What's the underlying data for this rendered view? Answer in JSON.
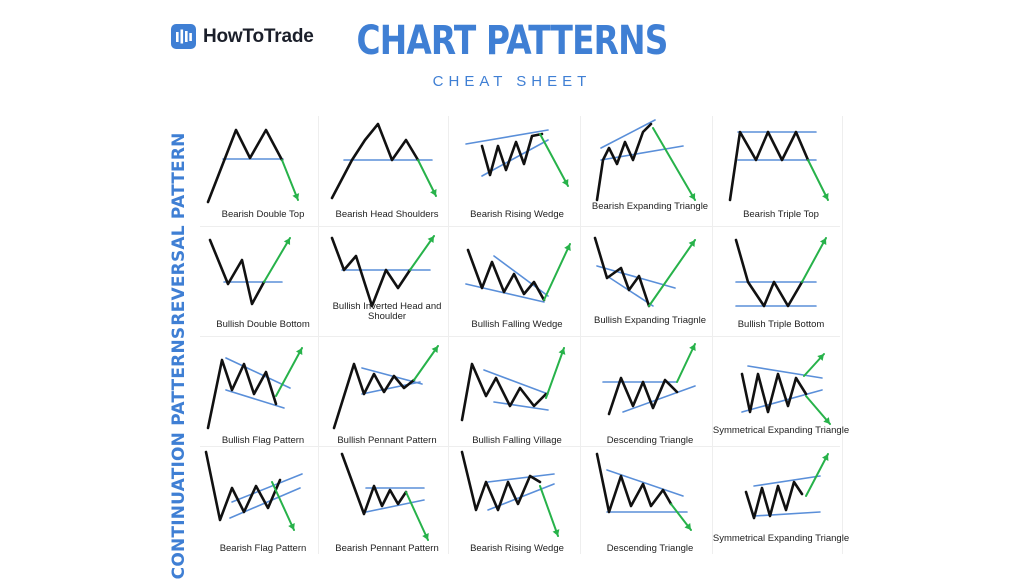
{
  "brand": {
    "name": "HowToTrade",
    "icon": "bar-chart-logo-icon"
  },
  "header": {
    "title": "CHART PATTERNS",
    "subtitle": "CHEAT SHEET"
  },
  "colors": {
    "accent": "#3f7fd4",
    "price_line": "#111111",
    "support_line": "#5a8fd9",
    "breakout": "#27b24a"
  },
  "sections": [
    {
      "label": "REVERSAL PATTERN",
      "patterns": [
        {
          "id": "bearish-double-top",
          "name": "Bearish Double Top"
        },
        {
          "id": "bearish-head-shoulders",
          "name": "Bearish Head Shoulders"
        },
        {
          "id": "bearish-rising-wedge-1",
          "name": "Bearish Rising Wedge"
        },
        {
          "id": "bearish-expanding-triangle",
          "name": "Bearish Expanding Triangle"
        },
        {
          "id": "bearish-triple-top",
          "name": "Bearish Triple Top"
        },
        {
          "id": "bullish-double-bottom",
          "name": "Bullish Double Bottom"
        },
        {
          "id": "bullish-inverted-head-shoulder",
          "name": "Bullish Inverted Head and Shoulder"
        },
        {
          "id": "bullish-falling-wedge",
          "name": "Bullish Falling Wedge"
        },
        {
          "id": "bullish-expanding-triangle",
          "name": "Bullish Expanding Triagnle"
        },
        {
          "id": "bullish-triple-bottom",
          "name": "Bullish Triple Bottom"
        }
      ]
    },
    {
      "label": "CONTINUATION PATTERNS",
      "patterns": [
        {
          "id": "bullish-flag",
          "name": "Bullish Flag Pattern"
        },
        {
          "id": "bullish-pennant",
          "name": "Bullish Pennant Pattern"
        },
        {
          "id": "bullish-falling-village",
          "name": "Bullish Falling Village"
        },
        {
          "id": "descending-triangle-1",
          "name": "Descending Triangle"
        },
        {
          "id": "symmetrical-expanding-1",
          "name": "Symmetrical Expanding Triangle"
        },
        {
          "id": "bearish-flag",
          "name": "Bearish Flag Pattern"
        },
        {
          "id": "bearish-pennant",
          "name": "Bearish Pennant Pattern"
        },
        {
          "id": "bearish-rising-wedge-2",
          "name": "Bearish Rising Wedge"
        },
        {
          "id": "descending-triangle-2",
          "name": "Descending Triangle"
        },
        {
          "id": "symmetrical-expanding-2",
          "name": "Symmetrical Expanding Triangle"
        }
      ]
    }
  ]
}
